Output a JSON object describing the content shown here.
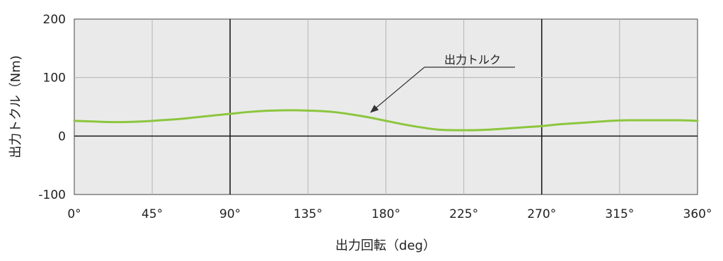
{
  "chart_data": {
    "type": "line",
    "title": "",
    "xlabel": "出力回転（deg）",
    "ylabel": "出力トクル（Nm)",
    "xlim": [
      0,
      360
    ],
    "ylim": [
      -100,
      200
    ],
    "x_ticks": [
      0,
      45,
      90,
      135,
      180,
      225,
      270,
      315,
      360
    ],
    "x_tick_labels": [
      "0°",
      "45°",
      "90°",
      "135°",
      "180°",
      "225°",
      "270°",
      "315°",
      "360°"
    ],
    "y_ticks": [
      -100,
      0,
      100,
      200
    ],
    "y_tick_labels": [
      "-100",
      "0",
      "100",
      "200"
    ],
    "grid": true,
    "emphasized_x_lines": [
      90,
      270
    ],
    "series": [
      {
        "name": "出力トルク",
        "color": "#8cc63e",
        "x": [
          0,
          10,
          20,
          30,
          40,
          50,
          60,
          70,
          80,
          90,
          100,
          110,
          120,
          130,
          140,
          150,
          160,
          170,
          180,
          190,
          200,
          210,
          220,
          230,
          240,
          250,
          260,
          270,
          280,
          290,
          300,
          310,
          320,
          330,
          340,
          350,
          360
        ],
        "y": [
          26,
          25,
          24,
          24,
          25,
          27,
          29,
          32,
          35,
          38,
          41,
          43,
          44,
          44,
          43,
          41,
          37,
          32,
          26,
          20,
          15,
          11,
          10,
          10,
          11,
          13,
          15,
          17,
          20,
          22,
          24,
          26,
          27,
          27,
          27,
          27,
          26
        ]
      }
    ],
    "annotations": [
      {
        "text": "出力トルク",
        "points_to_x": 170,
        "points_to_y": 37
      }
    ]
  }
}
